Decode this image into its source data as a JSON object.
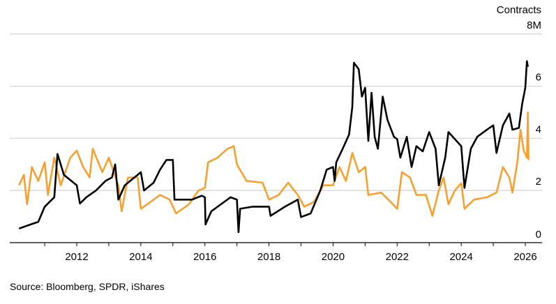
{
  "chart_data": {
    "type": "line",
    "ylabel": "Contracts",
    "y_unit_suffix": "M",
    "ylim": [
      0,
      8
    ],
    "yticks": [
      0,
      2,
      4,
      6,
      8
    ],
    "ytick_labels": [
      "0",
      "2",
      "4",
      "6",
      "8M"
    ],
    "xlim": [
      2010.0,
      2026.4
    ],
    "xticks_major": [
      "2012",
      "2014",
      "2016",
      "2018",
      "2020",
      "2022",
      "2024",
      "2026"
    ],
    "grid": true,
    "y_axis_position": "right",
    "source": "Source: Bloomberg, SPDR, iShares",
    "series": [
      {
        "color": "#000000",
        "x": [
          2010.2,
          2010.5,
          2010.8,
          2011.0,
          2011.3,
          2011.4,
          2011.6,
          2011.9,
          2012.0,
          2012.1,
          2012.3,
          2012.6,
          2012.9,
          2013.1,
          2013.2,
          2013.3,
          2013.5,
          2013.8,
          2014.0,
          2014.1,
          2014.4,
          2014.6,
          2014.8,
          2015.0,
          2015.05,
          2015.3,
          2015.6,
          2015.9,
          2016.0,
          2016.02,
          2016.2,
          2016.5,
          2016.8,
          2017.0,
          2017.05,
          2017.1,
          2017.5,
          2018.0,
          2018.05,
          2018.5,
          2018.9,
          2019.0,
          2019.3,
          2019.6,
          2019.8,
          2020.0,
          2020.05,
          2020.1,
          2020.3,
          2020.5,
          2020.6,
          2020.65,
          2020.8,
          2020.9,
          2021.0,
          2021.1,
          2021.2,
          2021.3,
          2021.4,
          2021.55,
          2021.7,
          2021.9,
          2022.0,
          2022.1,
          2022.3,
          2022.45,
          2022.6,
          2022.8,
          2023.0,
          2023.2,
          2023.3,
          2023.5,
          2023.6,
          2023.8,
          2024.0,
          2024.1,
          2024.3,
          2024.5,
          2024.8,
          2025.0,
          2025.1,
          2025.3,
          2025.5,
          2025.6,
          2025.8,
          2025.9,
          2026.0,
          2026.05,
          2026.08
        ],
        "values": [
          0.54,
          0.67,
          0.8,
          1.38,
          1.74,
          3.4,
          2.6,
          2.3,
          2.2,
          1.5,
          1.74,
          2.0,
          2.37,
          2.5,
          3.0,
          1.65,
          2.2,
          2.5,
          2.7,
          2.0,
          2.3,
          2.8,
          3.17,
          3.17,
          1.65,
          1.65,
          1.65,
          1.8,
          1.74,
          0.7,
          1.2,
          1.47,
          1.74,
          1.65,
          0.4,
          1.3,
          1.38,
          1.38,
          1.03,
          1.38,
          1.65,
          0.98,
          1.12,
          2.0,
          2.8,
          2.9,
          2.37,
          3.08,
          3.6,
          4.15,
          5.2,
          6.9,
          6.65,
          5.6,
          5.94,
          3.9,
          5.75,
          4.06,
          3.6,
          5.6,
          4.7,
          4.06,
          3.97,
          3.26,
          4.06,
          2.9,
          3.7,
          3.5,
          4.24,
          3.6,
          2.2,
          3.26,
          4.24,
          3.97,
          3.7,
          2.1,
          3.6,
          4.06,
          4.33,
          4.5,
          3.44,
          4.5,
          4.95,
          4.33,
          4.4,
          5.3,
          5.94,
          6.96,
          6.74
        ]
      },
      {
        "color": "#f7a030",
        "x": [
          2010.2,
          2010.35,
          2010.45,
          2010.6,
          2010.8,
          2011.0,
          2011.1,
          2011.3,
          2011.5,
          2011.8,
          2012.0,
          2012.2,
          2012.4,
          2012.5,
          2012.8,
          2013.0,
          2013.3,
          2013.4,
          2013.6,
          2013.9,
          2014.0,
          2014.3,
          2014.6,
          2014.9,
          2015.1,
          2015.5,
          2015.8,
          2016.0,
          2016.1,
          2016.4,
          2016.7,
          2016.9,
          2017.0,
          2017.3,
          2017.8,
          2018.0,
          2018.3,
          2018.6,
          2018.9,
          2019.1,
          2019.4,
          2019.7,
          2020.0,
          2020.2,
          2020.4,
          2020.6,
          2020.8,
          2021.0,
          2021.1,
          2021.5,
          2021.8,
          2022.0,
          2022.15,
          2022.4,
          2022.6,
          2022.9,
          2023.1,
          2023.3,
          2023.45,
          2023.6,
          2023.8,
          2024.0,
          2024.1,
          2024.4,
          2024.8,
          2025.1,
          2025.3,
          2025.5,
          2025.6,
          2025.75,
          2025.85,
          2025.95,
          2026.05,
          2026.08,
          2026.1
        ],
        "values": [
          2.2,
          2.6,
          1.47,
          2.9,
          2.37,
          3.08,
          1.83,
          3.26,
          2.2,
          3.26,
          3.53,
          2.9,
          2.5,
          3.6,
          2.7,
          3.26,
          2.2,
          1.2,
          2.5,
          2.5,
          1.3,
          1.56,
          1.83,
          1.65,
          1.12,
          1.47,
          2.0,
          2.1,
          3.08,
          3.26,
          3.6,
          3.7,
          3.0,
          2.37,
          2.3,
          1.65,
          1.83,
          2.3,
          1.83,
          1.38,
          1.56,
          2.2,
          2.2,
          2.9,
          2.37,
          3.44,
          2.7,
          2.9,
          1.83,
          1.92,
          1.56,
          1.3,
          2.7,
          2.5,
          1.83,
          1.83,
          1.03,
          2.0,
          2.5,
          1.47,
          2.0,
          2.28,
          1.3,
          1.65,
          1.74,
          1.92,
          2.9,
          2.5,
          1.92,
          3.08,
          4.33,
          3.53,
          3.26,
          5.0,
          3.17
        ]
      }
    ]
  }
}
